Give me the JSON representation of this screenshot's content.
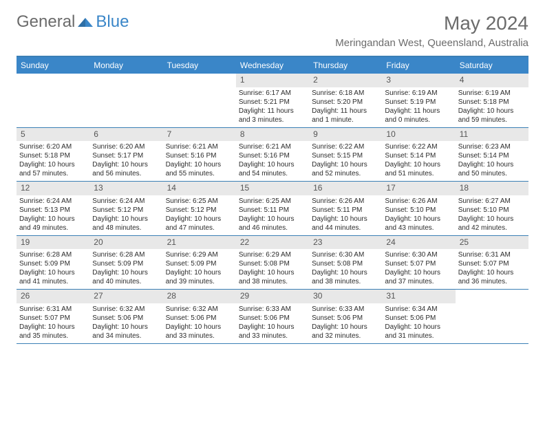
{
  "brand": {
    "part1": "General",
    "part2": "Blue"
  },
  "title": "May 2024",
  "location": "Meringandan West, Queensland, Australia",
  "colors": {
    "header_bg": "#3a86c8",
    "header_text": "#ffffff",
    "daynum_bg": "#e8e8e8",
    "border": "#3a7fb5",
    "text": "#2b2b2b",
    "muted": "#6b6b6b"
  },
  "day_names": [
    "Sunday",
    "Monday",
    "Tuesday",
    "Wednesday",
    "Thursday",
    "Friday",
    "Saturday"
  ],
  "weeks": [
    [
      {
        "day": "",
        "lines": []
      },
      {
        "day": "",
        "lines": []
      },
      {
        "day": "",
        "lines": []
      },
      {
        "day": "1",
        "lines": [
          "Sunrise: 6:17 AM",
          "Sunset: 5:21 PM",
          "Daylight: 11 hours and 3 minutes."
        ]
      },
      {
        "day": "2",
        "lines": [
          "Sunrise: 6:18 AM",
          "Sunset: 5:20 PM",
          "Daylight: 11 hours and 1 minute."
        ]
      },
      {
        "day": "3",
        "lines": [
          "Sunrise: 6:19 AM",
          "Sunset: 5:19 PM",
          "Daylight: 11 hours and 0 minutes."
        ]
      },
      {
        "day": "4",
        "lines": [
          "Sunrise: 6:19 AM",
          "Sunset: 5:18 PM",
          "Daylight: 10 hours and 59 minutes."
        ]
      }
    ],
    [
      {
        "day": "5",
        "lines": [
          "Sunrise: 6:20 AM",
          "Sunset: 5:18 PM",
          "Daylight: 10 hours and 57 minutes."
        ]
      },
      {
        "day": "6",
        "lines": [
          "Sunrise: 6:20 AM",
          "Sunset: 5:17 PM",
          "Daylight: 10 hours and 56 minutes."
        ]
      },
      {
        "day": "7",
        "lines": [
          "Sunrise: 6:21 AM",
          "Sunset: 5:16 PM",
          "Daylight: 10 hours and 55 minutes."
        ]
      },
      {
        "day": "8",
        "lines": [
          "Sunrise: 6:21 AM",
          "Sunset: 5:16 PM",
          "Daylight: 10 hours and 54 minutes."
        ]
      },
      {
        "day": "9",
        "lines": [
          "Sunrise: 6:22 AM",
          "Sunset: 5:15 PM",
          "Daylight: 10 hours and 52 minutes."
        ]
      },
      {
        "day": "10",
        "lines": [
          "Sunrise: 6:22 AM",
          "Sunset: 5:14 PM",
          "Daylight: 10 hours and 51 minutes."
        ]
      },
      {
        "day": "11",
        "lines": [
          "Sunrise: 6:23 AM",
          "Sunset: 5:14 PM",
          "Daylight: 10 hours and 50 minutes."
        ]
      }
    ],
    [
      {
        "day": "12",
        "lines": [
          "Sunrise: 6:24 AM",
          "Sunset: 5:13 PM",
          "Daylight: 10 hours and 49 minutes."
        ]
      },
      {
        "day": "13",
        "lines": [
          "Sunrise: 6:24 AM",
          "Sunset: 5:12 PM",
          "Daylight: 10 hours and 48 minutes."
        ]
      },
      {
        "day": "14",
        "lines": [
          "Sunrise: 6:25 AM",
          "Sunset: 5:12 PM",
          "Daylight: 10 hours and 47 minutes."
        ]
      },
      {
        "day": "15",
        "lines": [
          "Sunrise: 6:25 AM",
          "Sunset: 5:11 PM",
          "Daylight: 10 hours and 46 minutes."
        ]
      },
      {
        "day": "16",
        "lines": [
          "Sunrise: 6:26 AM",
          "Sunset: 5:11 PM",
          "Daylight: 10 hours and 44 minutes."
        ]
      },
      {
        "day": "17",
        "lines": [
          "Sunrise: 6:26 AM",
          "Sunset: 5:10 PM",
          "Daylight: 10 hours and 43 minutes."
        ]
      },
      {
        "day": "18",
        "lines": [
          "Sunrise: 6:27 AM",
          "Sunset: 5:10 PM",
          "Daylight: 10 hours and 42 minutes."
        ]
      }
    ],
    [
      {
        "day": "19",
        "lines": [
          "Sunrise: 6:28 AM",
          "Sunset: 5:09 PM",
          "Daylight: 10 hours and 41 minutes."
        ]
      },
      {
        "day": "20",
        "lines": [
          "Sunrise: 6:28 AM",
          "Sunset: 5:09 PM",
          "Daylight: 10 hours and 40 minutes."
        ]
      },
      {
        "day": "21",
        "lines": [
          "Sunrise: 6:29 AM",
          "Sunset: 5:09 PM",
          "Daylight: 10 hours and 39 minutes."
        ]
      },
      {
        "day": "22",
        "lines": [
          "Sunrise: 6:29 AM",
          "Sunset: 5:08 PM",
          "Daylight: 10 hours and 38 minutes."
        ]
      },
      {
        "day": "23",
        "lines": [
          "Sunrise: 6:30 AM",
          "Sunset: 5:08 PM",
          "Daylight: 10 hours and 38 minutes."
        ]
      },
      {
        "day": "24",
        "lines": [
          "Sunrise: 6:30 AM",
          "Sunset: 5:07 PM",
          "Daylight: 10 hours and 37 minutes."
        ]
      },
      {
        "day": "25",
        "lines": [
          "Sunrise: 6:31 AM",
          "Sunset: 5:07 PM",
          "Daylight: 10 hours and 36 minutes."
        ]
      }
    ],
    [
      {
        "day": "26",
        "lines": [
          "Sunrise: 6:31 AM",
          "Sunset: 5:07 PM",
          "Daylight: 10 hours and 35 minutes."
        ]
      },
      {
        "day": "27",
        "lines": [
          "Sunrise: 6:32 AM",
          "Sunset: 5:06 PM",
          "Daylight: 10 hours and 34 minutes."
        ]
      },
      {
        "day": "28",
        "lines": [
          "Sunrise: 6:32 AM",
          "Sunset: 5:06 PM",
          "Daylight: 10 hours and 33 minutes."
        ]
      },
      {
        "day": "29",
        "lines": [
          "Sunrise: 6:33 AM",
          "Sunset: 5:06 PM",
          "Daylight: 10 hours and 33 minutes."
        ]
      },
      {
        "day": "30",
        "lines": [
          "Sunrise: 6:33 AM",
          "Sunset: 5:06 PM",
          "Daylight: 10 hours and 32 minutes."
        ]
      },
      {
        "day": "31",
        "lines": [
          "Sunrise: 6:34 AM",
          "Sunset: 5:06 PM",
          "Daylight: 10 hours and 31 minutes."
        ]
      },
      {
        "day": "",
        "lines": []
      }
    ]
  ]
}
